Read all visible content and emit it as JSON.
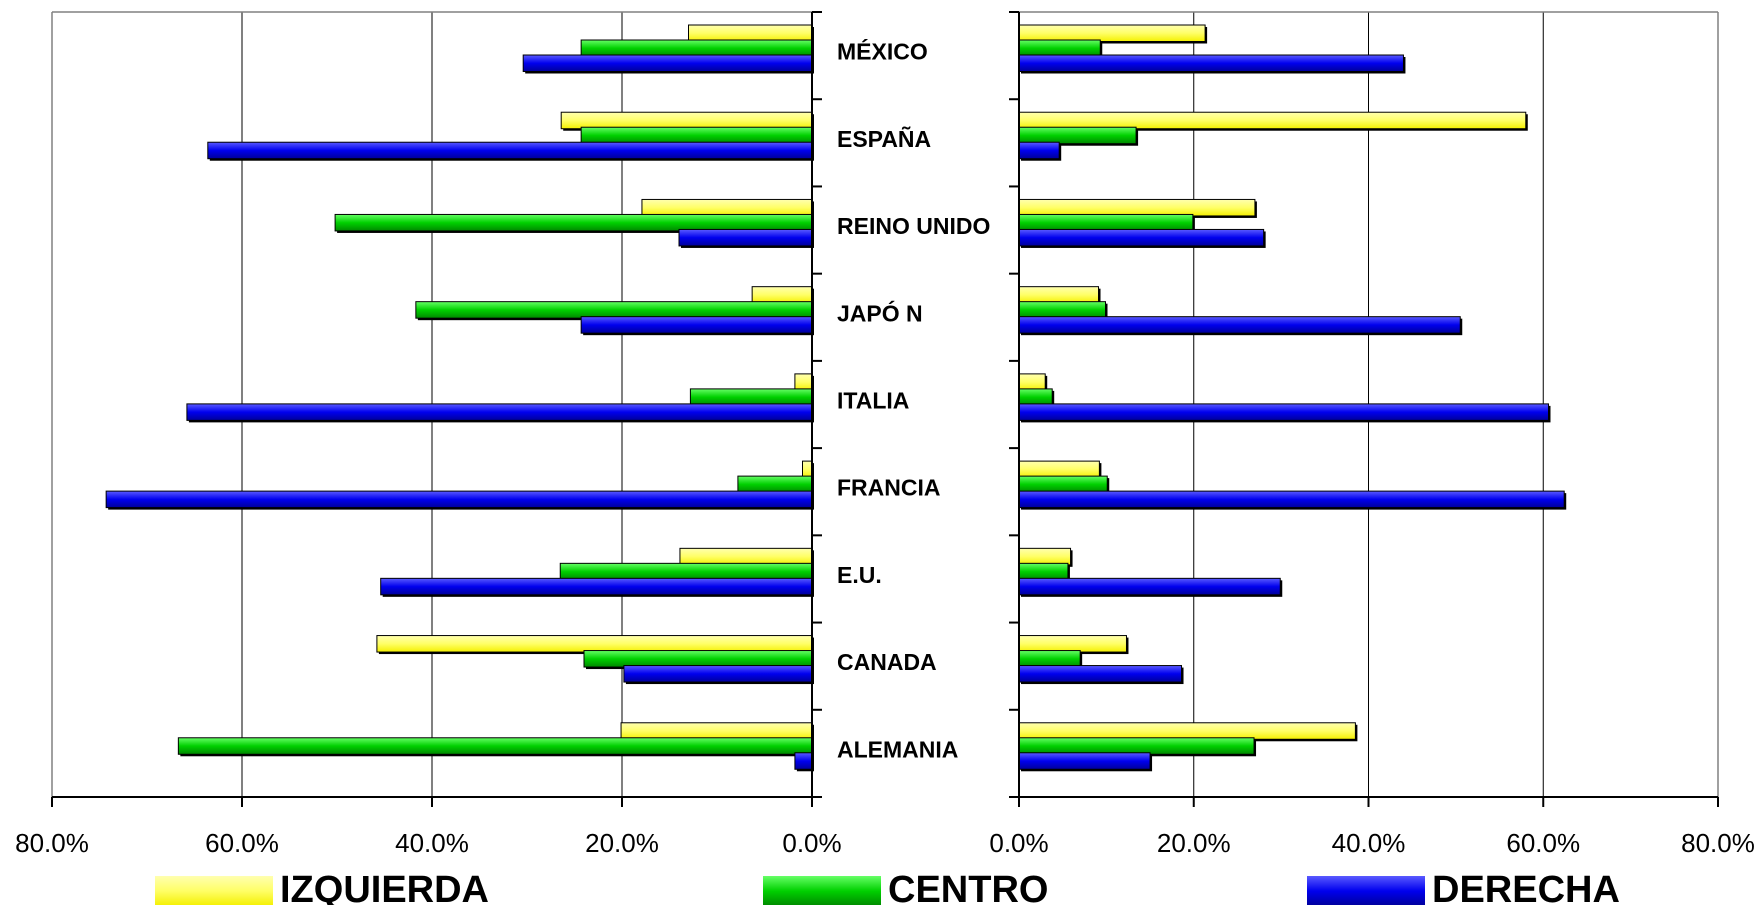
{
  "chart_data": {
    "type": "bar",
    "orientation": "horizontal",
    "categories": [
      "MÉXICO",
      "ESPAÑA",
      "REINO UNIDO",
      "JAPÓ N",
      "ITALIA",
      "FRANCIA",
      "E.U.",
      "CANADA",
      "ALEMANIA"
    ],
    "legend": [
      {
        "name": "IZQUIERDA",
        "color": "#ffff66"
      },
      {
        "name": "CENTRO",
        "color": "#00cc00"
      },
      {
        "name": "DERECHA",
        "color": "#0000ee"
      }
    ],
    "panels": [
      {
        "side": "left",
        "direction": "reversed",
        "xlim": [
          0,
          80
        ],
        "ticks": [
          "0.0%",
          "20.0%",
          "40.0%",
          "60.0%",
          "80.0%"
        ],
        "grid": true,
        "series": [
          {
            "name": "IZQUIERDA",
            "values": [
              13.0,
              26.4,
              17.9,
              6.3,
              1.8,
              1.0,
              13.9,
              45.8,
              20.1
            ]
          },
          {
            "name": "CENTRO",
            "values": [
              24.3,
              24.3,
              50.2,
              41.7,
              12.8,
              7.8,
              26.5,
              24.0,
              66.7
            ]
          },
          {
            "name": "DERECHA",
            "values": [
              30.4,
              63.6,
              14.0,
              24.3,
              65.8,
              74.3,
              45.4,
              19.8,
              1.8
            ]
          }
        ]
      },
      {
        "side": "right",
        "direction": "normal",
        "xlim": [
          0,
          80
        ],
        "ticks": [
          "0.0%",
          "20.0%",
          "40.0%",
          "60.0%",
          "80.0%"
        ],
        "grid": true,
        "series": [
          {
            "name": "IZQUIERDA",
            "values": [
              21.3,
              58.0,
              27.0,
              9.1,
              3.0,
              9.2,
              5.9,
              12.3,
              38.5
            ]
          },
          {
            "name": "CENTRO",
            "values": [
              9.3,
              13.4,
              19.9,
              9.9,
              3.8,
              10.1,
              5.6,
              7.0,
              26.9
            ]
          },
          {
            "name": "DERECHA",
            "values": [
              44.0,
              4.6,
              28.0,
              50.5,
              60.6,
              62.4,
              29.9,
              18.6,
              15.0
            ]
          }
        ]
      }
    ]
  }
}
